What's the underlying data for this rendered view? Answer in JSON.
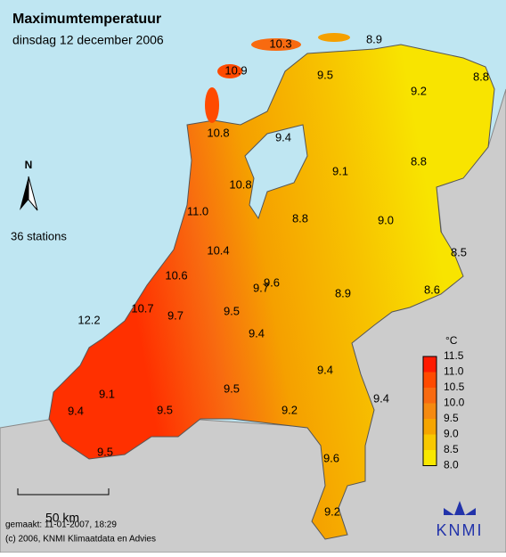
{
  "header": {
    "title": "Maximumtemperatuur",
    "subtitle": "dinsdag 12 december 2006"
  },
  "north": "N",
  "station_count": "36 stations",
  "stations": [
    "10.3",
    "8.9",
    "10.9",
    "9.5",
    "8.8",
    "9.2",
    "10.8",
    "9.4",
    "9.1",
    "8.8",
    "10.8",
    "11.0",
    "8.8",
    "9.0",
    "10.4",
    "8.5",
    "10.6",
    "9.6",
    "9.7",
    "8.6",
    "8.9",
    "12.2",
    "10.7",
    "9.7",
    "9.5",
    "9.4",
    "9.4",
    "9.1",
    "9.5",
    "9.4",
    "9.4",
    "9.5",
    "9.2",
    "9.5",
    "9.6",
    "9.2"
  ],
  "legend": {
    "unit": "°C",
    "labels": [
      "11.5",
      "11.0",
      "10.5",
      "10.0",
      "9.5",
      "9.0",
      "8.5",
      "8.0"
    ],
    "colors": [
      "#ff1a00",
      "#ff4a00",
      "#f86a10",
      "#f58a10",
      "#f5a500",
      "#f8c800",
      "#f8e800"
    ]
  },
  "scale": "50 km",
  "footer": [
    "gemaakt: 11-01-2007, 18:29",
    "(c) 2006, KNMI Klimaatdata en Advies"
  ],
  "logo": "KNMI"
}
